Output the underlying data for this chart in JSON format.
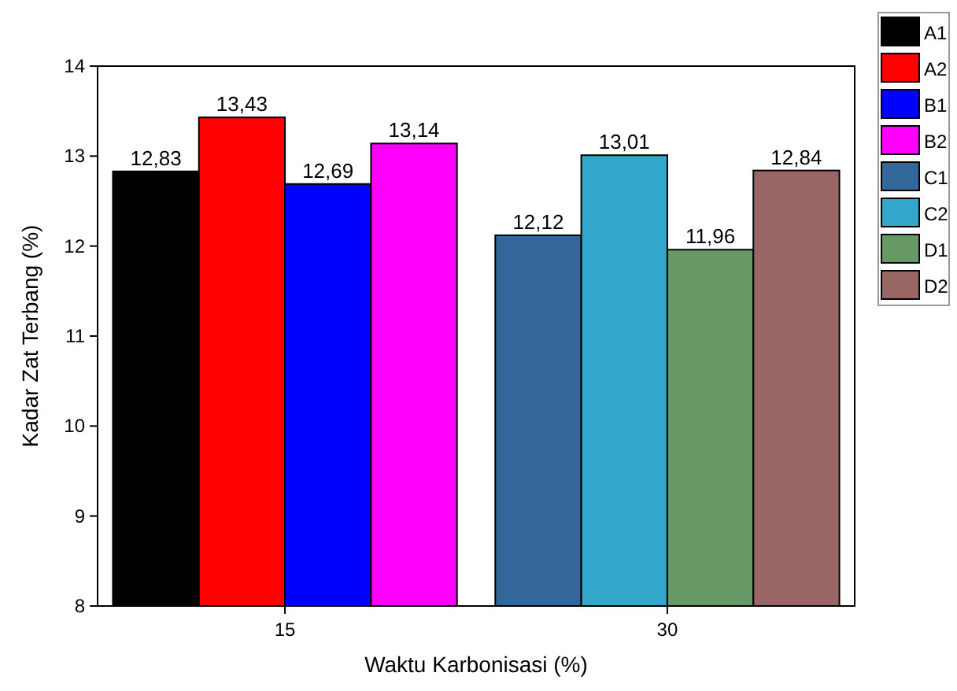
{
  "chart_data": {
    "type": "bar",
    "xlabel": "Waktu Karbonisasi (%)",
    "ylabel": "Kadar Zat Terbang (%)",
    "categories": [
      "15",
      "30"
    ],
    "ylim": [
      8,
      14
    ],
    "yticks": [
      8,
      9,
      10,
      11,
      12,
      13,
      14
    ],
    "legend": "top right",
    "grid": false,
    "series": [
      {
        "name": "A1",
        "color": "#000000",
        "values": [
          12.83,
          null
        ],
        "value_labels": [
          "12,83",
          null
        ]
      },
      {
        "name": "A2",
        "color": "#ff0000",
        "values": [
          13.43,
          null
        ],
        "value_labels": [
          "13,43",
          null
        ]
      },
      {
        "name": "B1",
        "color": "#0000ff",
        "values": [
          12.69,
          null
        ],
        "value_labels": [
          "12,69",
          null
        ]
      },
      {
        "name": "B2",
        "color": "#ff00ff",
        "values": [
          13.14,
          null
        ],
        "value_labels": [
          "13,14",
          null
        ]
      },
      {
        "name": "C1",
        "color": "#336699",
        "values": [
          null,
          12.12
        ],
        "value_labels": [
          null,
          "12,12"
        ]
      },
      {
        "name": "C2",
        "color": "#33a6cc",
        "values": [
          null,
          13.01
        ],
        "value_labels": [
          null,
          "13,01"
        ]
      },
      {
        "name": "D1",
        "color": "#669966",
        "values": [
          null,
          11.96
        ],
        "value_labels": [
          null,
          "11,96"
        ]
      },
      {
        "name": "D2",
        "color": "#996666",
        "values": [
          null,
          12.84
        ],
        "value_labels": [
          null,
          "12,84"
        ]
      }
    ]
  }
}
